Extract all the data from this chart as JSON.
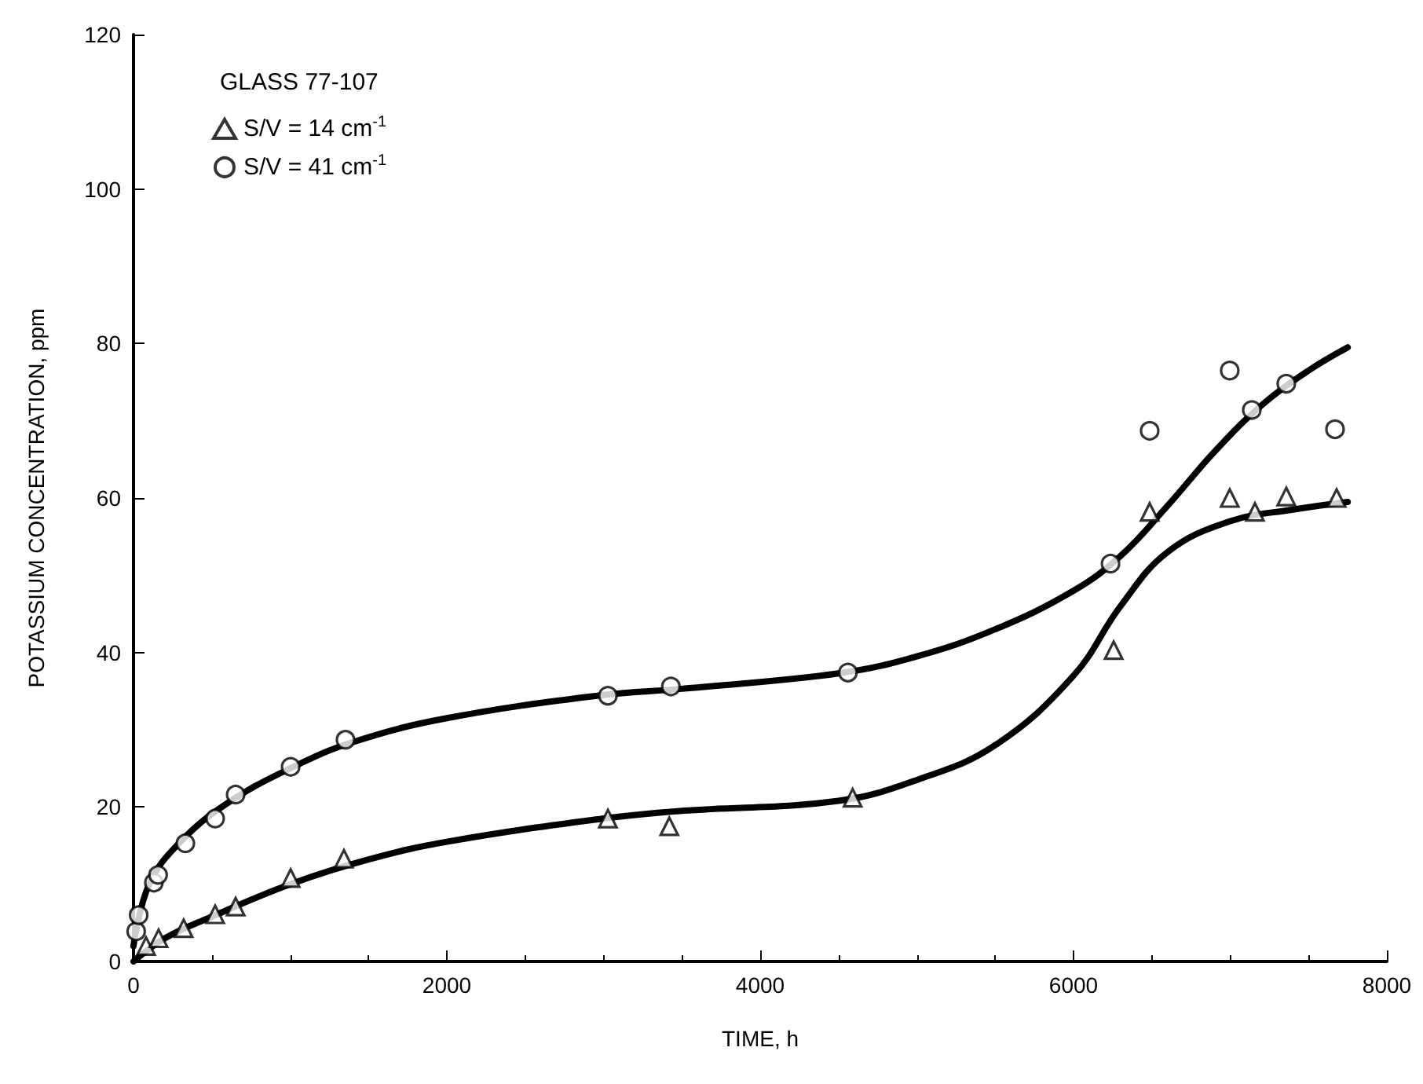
{
  "chart_data": {
    "type": "scatter",
    "xlabel": "TIME, h",
    "ylabel": "POTASSIUM CONCENTRATION, ppm",
    "legend_title": "GLASS 77-107",
    "legend": "top left",
    "grid": false,
    "xlim": [
      0,
      8000
    ],
    "xticks": [
      0,
      2000,
      4000,
      6000,
      8000
    ],
    "ylim": [
      0,
      120
    ],
    "yticks": [
      0,
      20,
      40,
      60,
      80,
      100,
      120
    ],
    "series": [
      {
        "name": "S/V = 14 cm$^{-1}$",
        "marker": "triangle",
        "color": "#000000",
        "x": [
          80,
          160,
          320,
          521,
          652,
          1003,
          1343,
          3028,
          3420,
          4590,
          6256,
          6486,
          6997,
          7158,
          7358,
          7679
        ],
        "values": [
          2,
          3,
          4.3,
          6.1,
          7.1,
          10.8,
          13.3,
          18.5,
          17.5,
          21.2,
          40.3,
          58.2,
          60,
          58.2,
          60.2,
          60
        ]
      },
      {
        "name": "S/V = 41 cm$^{-1}$",
        "marker": "circle",
        "color": "#000000",
        "x": [
          17,
          33,
          130,
          157,
          331,
          521,
          652,
          1003,
          1353,
          3028,
          3430,
          4560,
          6236,
          6486,
          6997,
          7138,
          7358,
          7669
        ],
        "values": [
          3.9,
          6,
          10.2,
          11.2,
          15.3,
          18.5,
          21.6,
          25.2,
          28.7,
          34.4,
          35.6,
          37.4,
          51.5,
          68.7,
          76.5,
          71.4,
          74.8,
          68.9
        ]
      },
      {
        "type": "line",
        "marker": "none",
        "line_style": "solid",
        "color": "#000000",
        "x": [
          0,
          200,
          500,
          1000,
          1500,
          2000,
          3000,
          3500,
          4500,
          5000,
          5500,
          6000,
          6300,
          6600,
          7000,
          7400,
          7750
        ],
        "values": [
          0,
          3,
          5.8,
          10,
          13.2,
          15.5,
          18.5,
          19.5,
          20.8,
          23.5,
          28,
          37,
          46,
          53,
          57,
          58.5,
          59.5
        ]
      },
      {
        "type": "line",
        "marker": "none",
        "line_style": "solid",
        "color": "#000000",
        "x": [
          0,
          100,
          300,
          600,
          1000,
          1400,
          2000,
          3000,
          3500,
          4500,
          5000,
          5500,
          6000,
          6300,
          6600,
          6900,
          7200,
          7500,
          7750
        ],
        "values": [
          2,
          10,
          15.5,
          20.5,
          25,
          28.4,
          31.5,
          34.5,
          35.3,
          37.3,
          39.5,
          43,
          48,
          52.5,
          59,
          66,
          72,
          76.5,
          79.5
        ]
      }
    ]
  }
}
